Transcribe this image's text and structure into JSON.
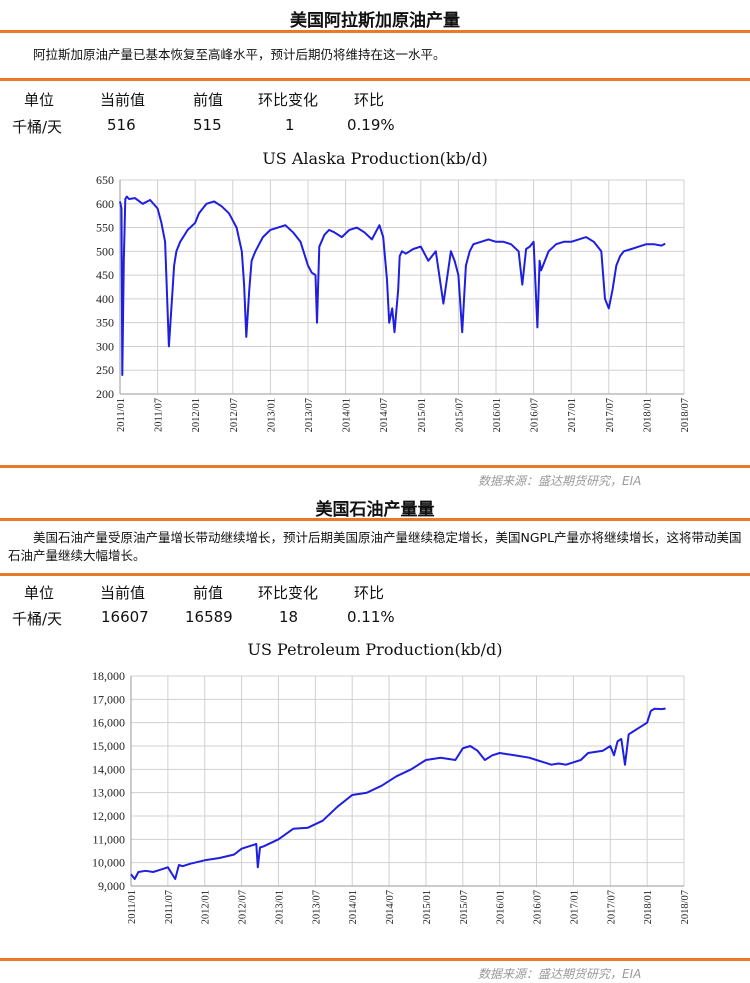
{
  "sections": [
    {
      "title": "美国阿拉斯加原油产量",
      "description": "阿拉斯加原油产量已基本恢复至高峰水平，预计后期仍将维持在这一水平。",
      "stats": {
        "headers": [
          "单位",
          "当前值",
          "前值",
          "环比变化",
          "环比"
        ],
        "values": [
          "千桶/天",
          "516",
          "515",
          "1",
          "0.19%"
        ]
      },
      "source": "数据来源：盛达期货研究，EIA"
    },
    {
      "title": "美国石油产量量",
      "description": "美国石油产量受原油产量增长带动继续增长，预计后期美国原油产量继续稳定增长，美国NGPL产量亦将继续增长，这将带动美国石油产量继续大幅增长。",
      "stats": {
        "headers": [
          "单位",
          "当前值",
          "前值",
          "环比变化",
          "环比"
        ],
        "values": [
          "千桶/天",
          "16607",
          "16589",
          "18",
          "0.11%"
        ]
      },
      "source": "数据来源：盛达期货研究，EIA"
    }
  ],
  "colors": {
    "accent": "#e8782a",
    "series": "#1f1fe0",
    "grid": "#d0d0d0"
  },
  "chart_data": [
    {
      "type": "line",
      "title": "US Alaska Production(kb/d)",
      "xlabel": "",
      "ylabel": "",
      "xlim": [
        "2011/01",
        "2018/07"
      ],
      "ylim": [
        200,
        650
      ],
      "yticks": [
        200,
        250,
        300,
        350,
        400,
        450,
        500,
        550,
        600,
        650
      ],
      "ytick_labels": [
        "200",
        "250",
        "300",
        "350",
        "400",
        "450",
        "500",
        "550",
        "600",
        "650"
      ],
      "xtick_labels": [
        "2011/01",
        "2011/07",
        "2012/01",
        "2012/07",
        "2013/01",
        "2013/07",
        "2014/01",
        "2014/07",
        "2015/01",
        "2015/07",
        "2016/01",
        "2016/07",
        "2017/01",
        "2017/07",
        "2018/01",
        "2018/07"
      ],
      "grid": true,
      "series": [
        {
          "x": [
            2011.0,
            2011.02,
            2011.03,
            2011.05,
            2011.07,
            2011.09,
            2011.12,
            2011.2,
            2011.3,
            2011.4,
            2011.5,
            2011.55,
            2011.6,
            2011.65,
            2011.7,
            2011.72,
            2011.75,
            2011.8,
            2011.9,
            2012.0,
            2012.05,
            2012.15,
            2012.25,
            2012.35,
            2012.45,
            2012.55,
            2012.62,
            2012.65,
            2012.68,
            2012.72,
            2012.75,
            2012.8,
            2012.9,
            2013.0,
            2013.2,
            2013.3,
            2013.4,
            2013.5,
            2013.55,
            2013.6,
            2013.62,
            2013.65,
            2013.72,
            2013.78,
            2013.85,
            2013.95,
            2014.05,
            2014.15,
            2014.25,
            2014.35,
            2014.45,
            2014.5,
            2014.55,
            2014.58,
            2014.62,
            2014.65,
            2014.7,
            2014.72,
            2014.75,
            2014.8,
            2014.9,
            2015.0,
            2015.1,
            2015.2,
            2015.3,
            2015.4,
            2015.45,
            2015.5,
            2015.55,
            2015.6,
            2015.65,
            2015.7,
            2015.8,
            2015.9,
            2016.0,
            2016.1,
            2016.2,
            2016.3,
            2016.35,
            2016.4,
            2016.45,
            2016.5,
            2016.55,
            2016.58,
            2016.6,
            2016.65,
            2016.7,
            2016.8,
            2016.9,
            2017.0,
            2017.1,
            2017.2,
            2017.3,
            2017.4,
            2017.45,
            2017.5,
            2017.55,
            2017.6,
            2017.65,
            2017.7,
            2017.8,
            2017.9,
            2018.0,
            2018.1,
            2018.2,
            2018.25
          ],
          "y": [
            605,
            590,
            240,
            480,
            610,
            615,
            610,
            612,
            600,
            608,
            590,
            560,
            520,
            300,
            420,
            470,
            500,
            520,
            545,
            560,
            580,
            600,
            605,
            595,
            580,
            550,
            500,
            430,
            320,
            420,
            480,
            500,
            530,
            545,
            555,
            540,
            520,
            470,
            455,
            450,
            350,
            510,
            535,
            545,
            540,
            530,
            545,
            550,
            540,
            525,
            555,
            530,
            440,
            350,
            380,
            330,
            420,
            490,
            500,
            495,
            505,
            510,
            480,
            500,
            390,
            500,
            480,
            450,
            330,
            470,
            500,
            515,
            520,
            525,
            520,
            520,
            515,
            500,
            430,
            505,
            510,
            520,
            340,
            480,
            460,
            480,
            500,
            515,
            520,
            520,
            525,
            530,
            520,
            500,
            400,
            380,
            420,
            470,
            490,
            500,
            505,
            510,
            515,
            515,
            512,
            516
          ]
        }
      ]
    },
    {
      "type": "line",
      "title": "US Petroleum Production(kb/d)",
      "xlabel": "",
      "ylabel": "",
      "xlim": [
        "2011/01",
        "2018/07"
      ],
      "ylim": [
        9000,
        18000
      ],
      "yticks": [
        9000,
        10000,
        11000,
        12000,
        13000,
        14000,
        15000,
        16000,
        17000,
        18000
      ],
      "ytick_labels": [
        "9,000",
        "10,000",
        "11,000",
        "12,000",
        "13,000",
        "14,000",
        "15,000",
        "16,000",
        "17,000",
        "18,000"
      ],
      "xtick_labels": [
        "2011/01",
        "2011/07",
        "2012/01",
        "2012/07",
        "2013/01",
        "2013/07",
        "2014/01",
        "2014/07",
        "2015/01",
        "2015/07",
        "2016/01",
        "2016/07",
        "2017/01",
        "2017/07",
        "2018/01",
        "2018/07"
      ],
      "grid": true,
      "series": [
        {
          "x": [
            2011.0,
            2011.05,
            2011.1,
            2011.2,
            2011.3,
            2011.4,
            2011.5,
            2011.6,
            2011.65,
            2011.7,
            2011.8,
            2012.0,
            2012.2,
            2012.4,
            2012.5,
            2012.6,
            2012.7,
            2012.72,
            2012.75,
            2012.8,
            2013.0,
            2013.2,
            2013.4,
            2013.5,
            2013.6,
            2013.7,
            2013.8,
            2014.0,
            2014.2,
            2014.4,
            2014.6,
            2014.8,
            2015.0,
            2015.2,
            2015.4,
            2015.5,
            2015.6,
            2015.7,
            2015.8,
            2015.9,
            2016.0,
            2016.2,
            2016.4,
            2016.5,
            2016.6,
            2016.7,
            2016.8,
            2016.9,
            2017.0,
            2017.1,
            2017.2,
            2017.4,
            2017.5,
            2017.55,
            2017.6,
            2017.65,
            2017.7,
            2017.75,
            2017.8,
            2017.9,
            2018.0,
            2018.05,
            2018.1,
            2018.2,
            2018.25
          ],
          "y": [
            9500,
            9300,
            9600,
            9650,
            9600,
            9700,
            9800,
            9300,
            9900,
            9850,
            9950,
            10100,
            10200,
            10350,
            10600,
            10700,
            10800,
            9800,
            10650,
            10700,
            11000,
            11450,
            11500,
            11650,
            11800,
            12100,
            12400,
            12900,
            13000,
            13300,
            13700,
            14000,
            14400,
            14500,
            14400,
            14900,
            15000,
            14800,
            14400,
            14600,
            14700,
            14600,
            14500,
            14400,
            14300,
            14200,
            14250,
            14200,
            14300,
            14400,
            14700,
            14800,
            15000,
            14600,
            15200,
            15300,
            14200,
            15500,
            15600,
            15800,
            16000,
            16500,
            16600,
            16580,
            16607
          ]
        }
      ]
    }
  ]
}
